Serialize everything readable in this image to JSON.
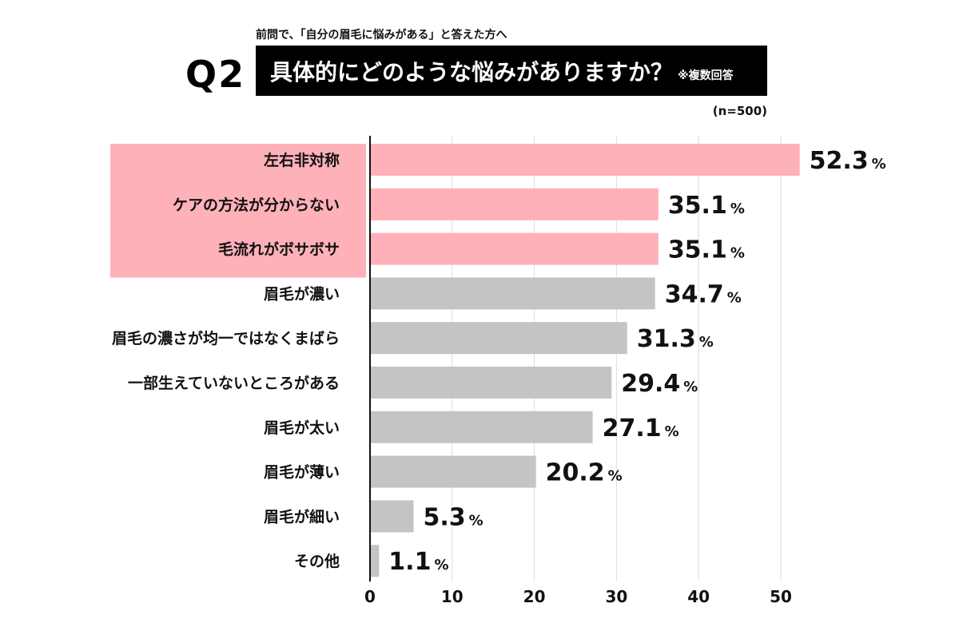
{
  "header": {
    "pre_title": "前問で、「自分の眉毛に悩みがある」と答えた方へ",
    "question_no": "Q2",
    "title": "具体的にどのような悩みがありますか？",
    "note": "※複数回答",
    "sample": "(n=500)"
  },
  "chart_data": {
    "type": "bar",
    "orientation": "horizontal",
    "categories": [
      "左右非対称",
      "ケアの方法が分からない",
      "毛流れがボサボサ",
      "眉毛が濃い",
      "眉毛の濃さが均一ではなくまばら",
      "一部生えていないところがある",
      "眉毛が太い",
      "眉毛が薄い",
      "眉毛が細い",
      "その他"
    ],
    "values": [
      52.3,
      35.1,
      35.1,
      34.7,
      31.3,
      29.4,
      27.1,
      20.2,
      5.3,
      1.1
    ],
    "value_suffix": "%",
    "highlighted": [
      0,
      1,
      2
    ],
    "xlim": [
      0,
      50
    ],
    "xticks": [
      0,
      10,
      20,
      30,
      40,
      50
    ],
    "grid": "vertical",
    "colors": {
      "highlight": "#ffb1b9",
      "normal": "#c6c3c6",
      "axis": "#111111",
      "grid": "#dddddd"
    }
  }
}
